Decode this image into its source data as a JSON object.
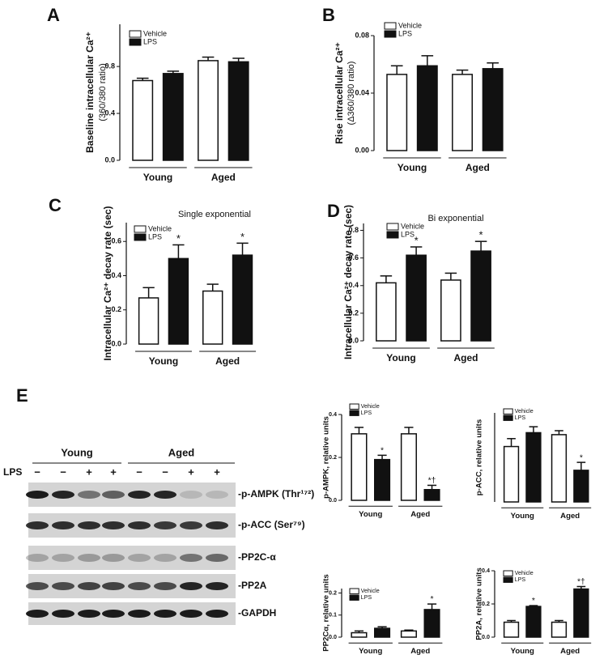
{
  "chart_data": [
    {
      "type": "bar",
      "panel": "A",
      "ylabel": [
        "Baseline intracellular Ca²⁺",
        "(360/380 ratio)"
      ],
      "categories": [
        "Young",
        "Aged"
      ],
      "series": [
        {
          "name": "Vehicle",
          "color": "#ffffff",
          "values": [
            0.68,
            0.85
          ],
          "errors": [
            0.02,
            0.03
          ],
          "significance": [
            null,
            null
          ]
        },
        {
          "name": "LPS",
          "color": "#111111",
          "values": [
            0.74,
            0.84
          ],
          "errors": [
            0.02,
            0.03
          ],
          "significance": [
            null,
            null
          ]
        }
      ],
      "ylim": [
        0,
        1.16
      ],
      "yticks": [
        {
          "value": 0,
          "label": "0.0"
        },
        0.4,
        0.8
      ]
    },
    {
      "type": "bar",
      "panel": "B",
      "ylabel": [
        "Rise intracellular Ca²⁺",
        "(Δ360/380 ratio)"
      ],
      "categories": [
        "Young",
        "Aged"
      ],
      "series": [
        {
          "name": "Vehicle",
          "color": "#ffffff",
          "values": [
            0.053,
            0.053
          ],
          "errors": [
            0.006,
            0.003
          ],
          "significance": [
            null,
            null
          ]
        },
        {
          "name": "LPS",
          "color": "#111111",
          "values": [
            0.059,
            0.057
          ],
          "errors": [
            0.007,
            0.004
          ],
          "significance": [
            null,
            null
          ]
        }
      ],
      "ylim": [
        0,
        0.08
      ],
      "yticks": [
        {
          "value": 0,
          "label": "0.00"
        },
        0.04,
        0.08
      ]
    },
    {
      "type": "bar",
      "panel": "C",
      "subtitle": "Single exponential",
      "ylabel": [
        "Intracellular Ca²⁺ decay rate (sec)"
      ],
      "categories": [
        "Young",
        "Aged"
      ],
      "series": [
        {
          "name": "Vehicle",
          "color": "#ffffff",
          "values": [
            0.27,
            0.31
          ],
          "errors": [
            0.06,
            0.04
          ],
          "significance": [
            null,
            null
          ]
        },
        {
          "name": "LPS",
          "color": "#111111",
          "values": [
            0.5,
            0.52
          ],
          "errors": [
            0.08,
            0.07
          ],
          "significance": [
            "*",
            "*"
          ]
        }
      ],
      "ylim": [
        0,
        0.71
      ],
      "yticks": [
        {
          "value": 0,
          "label": "0.0"
        },
        0.2,
        0.4,
        0.6
      ]
    },
    {
      "type": "bar",
      "panel": "D",
      "subtitle": "Bi exponential",
      "ylabel": [
        "Intracellular Ca²⁺ decay rate (sec)"
      ],
      "categories": [
        "Young",
        "Aged"
      ],
      "series": [
        {
          "name": "Vehicle",
          "color": "#ffffff",
          "values": [
            0.42,
            0.44
          ],
          "errors": [
            0.05,
            0.05
          ],
          "significance": [
            null,
            null
          ]
        },
        {
          "name": "LPS",
          "color": "#111111",
          "values": [
            0.62,
            0.65
          ],
          "errors": [
            0.06,
            0.07
          ],
          "significance": [
            "*",
            "*"
          ]
        }
      ],
      "ylim": [
        0,
        0.85
      ],
      "yticks": [
        {
          "value": 0,
          "label": "0.0"
        },
        0.2,
        0.4,
        0.6,
        0.8
      ]
    },
    {
      "type": "bar",
      "ylabel": [
        "p-AMPK, relative units"
      ],
      "categories": [
        "Young",
        "Aged"
      ],
      "series": [
        {
          "name": "Vehicle",
          "color": "#ffffff",
          "values": [
            0.31,
            0.31
          ],
          "errors": [
            0.03,
            0.03
          ],
          "significance": [
            null,
            null
          ]
        },
        {
          "name": "LPS",
          "color": "#111111",
          "values": [
            0.19,
            0.05
          ],
          "errors": [
            0.02,
            0.02
          ],
          "significance": [
            "*",
            "*†"
          ]
        }
      ],
      "ylim": [
        0,
        0.4
      ],
      "yticks": [
        {
          "value": 0,
          "label": "0.0"
        },
        0.2,
        0.4
      ]
    },
    {
      "type": "bar",
      "ylabel": [
        "p-ACC, relative units"
      ],
      "categories": [
        "Young",
        "Aged"
      ],
      "series": [
        {
          "name": "Vehicle",
          "color": "#ffffff",
          "values": [
            0.28,
            0.34
          ],
          "errors": [
            0.04,
            0.02
          ],
          "significance": [
            null,
            null
          ]
        },
        {
          "name": "LPS",
          "color": "#111111",
          "values": [
            0.35,
            0.16
          ],
          "errors": [
            0.03,
            0.04
          ],
          "significance": [
            null,
            "*"
          ]
        }
      ],
      "ylim": [
        0,
        0.45
      ]
    },
    {
      "type": "bar",
      "ylabel": [
        "PP2Cα, relative units"
      ],
      "categories": [
        "Young",
        "Aged"
      ],
      "series": [
        {
          "name": "Vehicle",
          "color": "#ffffff",
          "values": [
            0.02,
            0.028
          ],
          "errors": [
            0.008,
            0.004
          ],
          "significance": [
            null,
            null
          ]
        },
        {
          "name": "LPS",
          "color": "#111111",
          "values": [
            0.04,
            0.125
          ],
          "errors": [
            0.007,
            0.025
          ],
          "significance": [
            null,
            "*"
          ]
        }
      ],
      "ylim": [
        0,
        0.22
      ],
      "yticks": [
        {
          "value": 0,
          "label": "0.0"
        },
        0.1,
        0.2
      ]
    },
    {
      "type": "bar",
      "ylabel": [
        "PP2A, relative units"
      ],
      "categories": [
        "Young",
        "Aged"
      ],
      "series": [
        {
          "name": "Vehicle",
          "color": "#ffffff",
          "values": [
            0.09,
            0.09
          ],
          "errors": [
            0.01,
            0.01
          ],
          "significance": [
            null,
            null
          ]
        },
        {
          "name": "LPS",
          "color": "#111111",
          "values": [
            0.185,
            0.29
          ],
          "errors": [
            0.005,
            0.015
          ],
          "significance": [
            "*",
            "*†"
          ]
        }
      ],
      "ylim": [
        0,
        0.4
      ],
      "yticks": [
        {
          "value": 0,
          "label": "0.0"
        },
        0.2,
        0.4
      ]
    }
  ],
  "blot": {
    "panel": "E",
    "groups": [
      "Young",
      "Aged"
    ],
    "lps_label": "LPS",
    "lps": [
      "−",
      "−",
      "+",
      "+",
      "−",
      "−",
      "+",
      "+"
    ],
    "bands": [
      "-p-AMPK (Thr¹⁷²)",
      "-p-ACC (Ser⁷⁹)",
      "-PP2C-α",
      "-PP2A",
      "-GAPDH"
    ]
  }
}
